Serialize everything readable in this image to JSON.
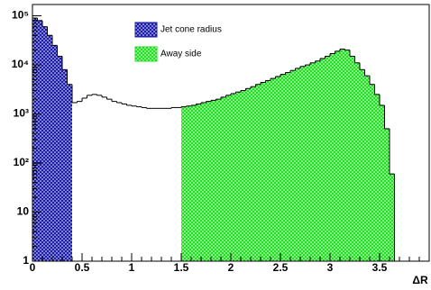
{
  "chart_data": {
    "type": "histogram",
    "x_label": "ΔR",
    "xlim": [
      0,
      4
    ],
    "xticks": [
      0,
      0.5,
      1,
      1.5,
      2,
      2.5,
      3,
      3.5
    ],
    "ylim": [
      1,
      170000
    ],
    "log_y": true,
    "yticks": [
      1,
      10,
      {
        "value": 100,
        "label": "10²"
      },
      {
        "value": 1000,
        "label": "10³"
      },
      {
        "value": 10000,
        "label": "10⁴"
      },
      {
        "value": 100000,
        "label": "10⁵"
      }
    ],
    "series": [
      {
        "color": "#000000",
        "filled": false,
        "bins": [
          0,
          0.05,
          0.1,
          0.15,
          0.2,
          0.25,
          0.3,
          0.35,
          0.4,
          0.45,
          0.5,
          0.55,
          0.6,
          0.65,
          0.7,
          0.75,
          0.8,
          0.85,
          0.9,
          0.95,
          1,
          1.05,
          1.1,
          1.15,
          1.2,
          1.25,
          1.3,
          1.35,
          1.4,
          1.45,
          1.5,
          1.55,
          1.6,
          1.65,
          1.7,
          1.75,
          1.8,
          1.85,
          1.9,
          1.95,
          2,
          2.05,
          2.1,
          2.15,
          2.2,
          2.25,
          2.3,
          2.35,
          2.4,
          2.45,
          2.5,
          2.55,
          2.6,
          2.65,
          2.7,
          2.75,
          2.8,
          2.85,
          2.9,
          2.95,
          3,
          3.05,
          3.1,
          3.15,
          3.2,
          3.25,
          3.3,
          3.35,
          3.4,
          3.45,
          3.5,
          3.55,
          3.6,
          3.65
        ],
        "values": [
          90000,
          80000,
          60000,
          40000,
          25000,
          15000,
          8000,
          4000,
          1700,
          1800,
          2100,
          2400,
          2500,
          2400,
          2200,
          2000,
          1800,
          1700,
          1600,
          1500,
          1450,
          1400,
          1350,
          1300,
          1300,
          1300,
          1300,
          1300,
          1350,
          1350,
          1400,
          1450,
          1500,
          1600,
          1700,
          1800,
          1900,
          2000,
          2200,
          2400,
          2600,
          2800,
          3000,
          3300,
          3600,
          4000,
          4400,
          4800,
          5300,
          5800,
          6400,
          7000,
          7700,
          8500,
          9300,
          10000,
          11000,
          12000,
          13500,
          15000,
          17000,
          19000,
          21000,
          20000,
          15000,
          11000,
          8000,
          6000,
          4000,
          2500,
          1500,
          500,
          60
        ]
      },
      {
        "name": "Jet cone radius",
        "color": "#1a1aa8",
        "filled": true,
        "bins": [
          0,
          0.05,
          0.1,
          0.15,
          0.2,
          0.25,
          0.3,
          0.35,
          0.4
        ],
        "values": [
          90000,
          80000,
          60000,
          40000,
          25000,
          15000,
          8000,
          4000
        ]
      },
      {
        "name": "Away side",
        "color": "#22dd22",
        "filled": true,
        "bins": [
          1.5,
          1.55,
          1.6,
          1.65,
          1.7,
          1.75,
          1.8,
          1.85,
          1.9,
          1.95,
          2,
          2.05,
          2.1,
          2.15,
          2.2,
          2.25,
          2.3,
          2.35,
          2.4,
          2.45,
          2.5,
          2.55,
          2.6,
          2.65,
          2.7,
          2.75,
          2.8,
          2.85,
          2.9,
          2.95,
          3,
          3.05,
          3.1,
          3.15,
          3.2,
          3.25,
          3.3,
          3.35,
          3.4,
          3.45,
          3.5,
          3.55,
          3.6,
          3.65
        ],
        "values": [
          1400,
          1450,
          1500,
          1600,
          1700,
          1800,
          1900,
          2000,
          2200,
          2400,
          2600,
          2800,
          3000,
          3300,
          3600,
          4000,
          4400,
          4800,
          5300,
          5800,
          6400,
          7000,
          7700,
          8500,
          9300,
          10000,
          11000,
          12000,
          13500,
          15000,
          17000,
          19000,
          21000,
          20000,
          15000,
          11000,
          8000,
          6000,
          4000,
          2500,
          1500,
          500,
          60
        ]
      }
    ]
  }
}
